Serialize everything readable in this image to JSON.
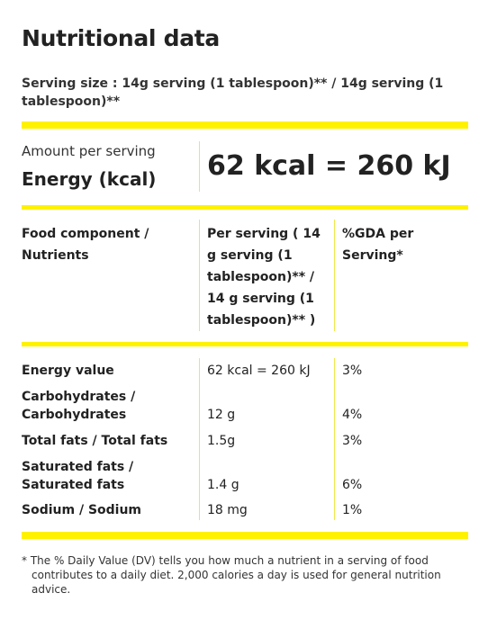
{
  "title": "Nutritional data",
  "serving_size": "Serving size : 14g serving (1 tablespoon)** / 14g serving (1 tablespoon)**",
  "amount_per_serving": "Amount per serving",
  "energy_label": "Energy (kcal)",
  "energy_value": "62 kcal = 260 kJ",
  "table": {
    "headers": {
      "component": "Food component / Nutrients",
      "per_serving": "Per serving ( 14 g serving (1 tablespoon)** / 14 g serving (1 tablespoon)** )",
      "gda": "%GDA per Serving*"
    },
    "rows": [
      {
        "name": "Energy value",
        "per_serving": "62 kcal = 260 kJ",
        "gda": "3%"
      },
      {
        "name": "Carbohydrates / Carbohydrates",
        "per_serving": "12 g",
        "gda": "4%"
      },
      {
        "name": "Total fats / Total fats",
        "per_serving": "1.5g",
        "gda": "3%"
      },
      {
        "name": "Saturated fats / Saturated fats",
        "per_serving": "1.4 g",
        "gda": "6%"
      },
      {
        "name": "Sodium / Sodium",
        "per_serving": "18 mg",
        "gda": "1%"
      }
    ]
  },
  "footnote": "* The % Daily Value (DV) tells you how much a nutrient in a serving of food contributes to a daily diet. 2,000 calories a day is used for general nutrition advice.",
  "colors": {
    "accent": "#fff200",
    "text": "#222222"
  }
}
